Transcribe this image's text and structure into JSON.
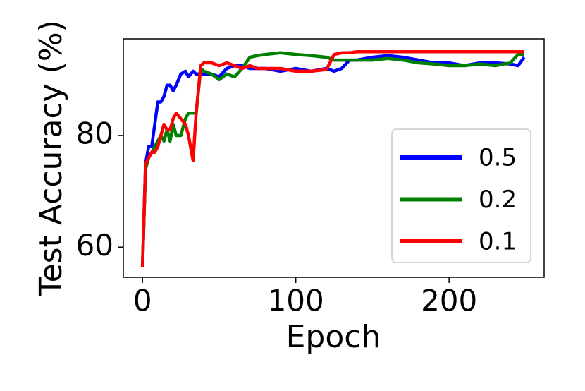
{
  "chart_data": {
    "type": "line",
    "xlabel": "Epoch",
    "ylabel": "Test Accuracy (%)",
    "x": [
      0,
      2,
      4,
      6,
      8,
      10,
      12,
      14,
      16,
      18,
      20,
      22,
      25,
      28,
      30,
      33,
      35,
      38,
      40,
      45,
      50,
      55,
      60,
      65,
      70,
      75,
      80,
      90,
      100,
      110,
      120,
      125,
      130,
      135,
      140,
      150,
      160,
      170,
      180,
      190,
      200,
      210,
      220,
      230,
      240,
      245,
      249
    ],
    "series": [
      {
        "name": "0.5",
        "color": "#0000ff",
        "values": [
          56.5,
          75,
          78,
          78,
          82,
          86,
          86,
          87,
          89,
          89,
          88,
          89,
          91,
          91.5,
          90.5,
          91.5,
          91,
          91,
          91,
          91,
          90.5,
          92,
          92.5,
          92.5,
          92,
          92,
          92,
          91.5,
          92,
          91.5,
          92,
          91.5,
          92,
          93.5,
          93.5,
          94,
          94.3,
          94,
          93.5,
          93,
          93,
          92.5,
          93,
          93,
          92.8,
          92.5,
          94
        ]
      },
      {
        "name": "0.2",
        "color": "#008000",
        "values": [
          56.5,
          74,
          76,
          77,
          78,
          79,
          80,
          79,
          81,
          79,
          82,
          80,
          80,
          83,
          84,
          84,
          84,
          92,
          91.5,
          91,
          90,
          91,
          90.5,
          92,
          94,
          94.3,
          94.5,
          94.8,
          94.5,
          94.3,
          94,
          93.5,
          93.5,
          93.5,
          93.5,
          93.5,
          93.8,
          93.5,
          93,
          92.8,
          92.5,
          92.5,
          92.8,
          92.5,
          93,
          94.5,
          94.5
        ]
      },
      {
        "name": "0.1",
        "color": "#ff0000",
        "values": [
          56.5,
          75,
          76,
          77,
          77,
          78,
          80,
          82,
          81,
          81,
          83,
          84,
          83,
          82,
          80,
          75.5,
          84,
          92.5,
          93,
          93,
          92.5,
          93,
          92.5,
          92,
          92.5,
          92,
          92,
          92,
          91.5,
          91.5,
          91.8,
          94.5,
          94.8,
          94.8,
          95,
          95,
          95,
          95,
          95,
          95,
          95,
          95,
          95,
          95,
          95,
          95,
          95
        ]
      }
    ],
    "xlim": [
      -12.5,
      262
    ],
    "ylim": [
      54.6,
      97.3
    ],
    "xticks": [
      0,
      100,
      200
    ],
    "yticks": [
      60,
      80
    ],
    "legend": "lower right"
  }
}
